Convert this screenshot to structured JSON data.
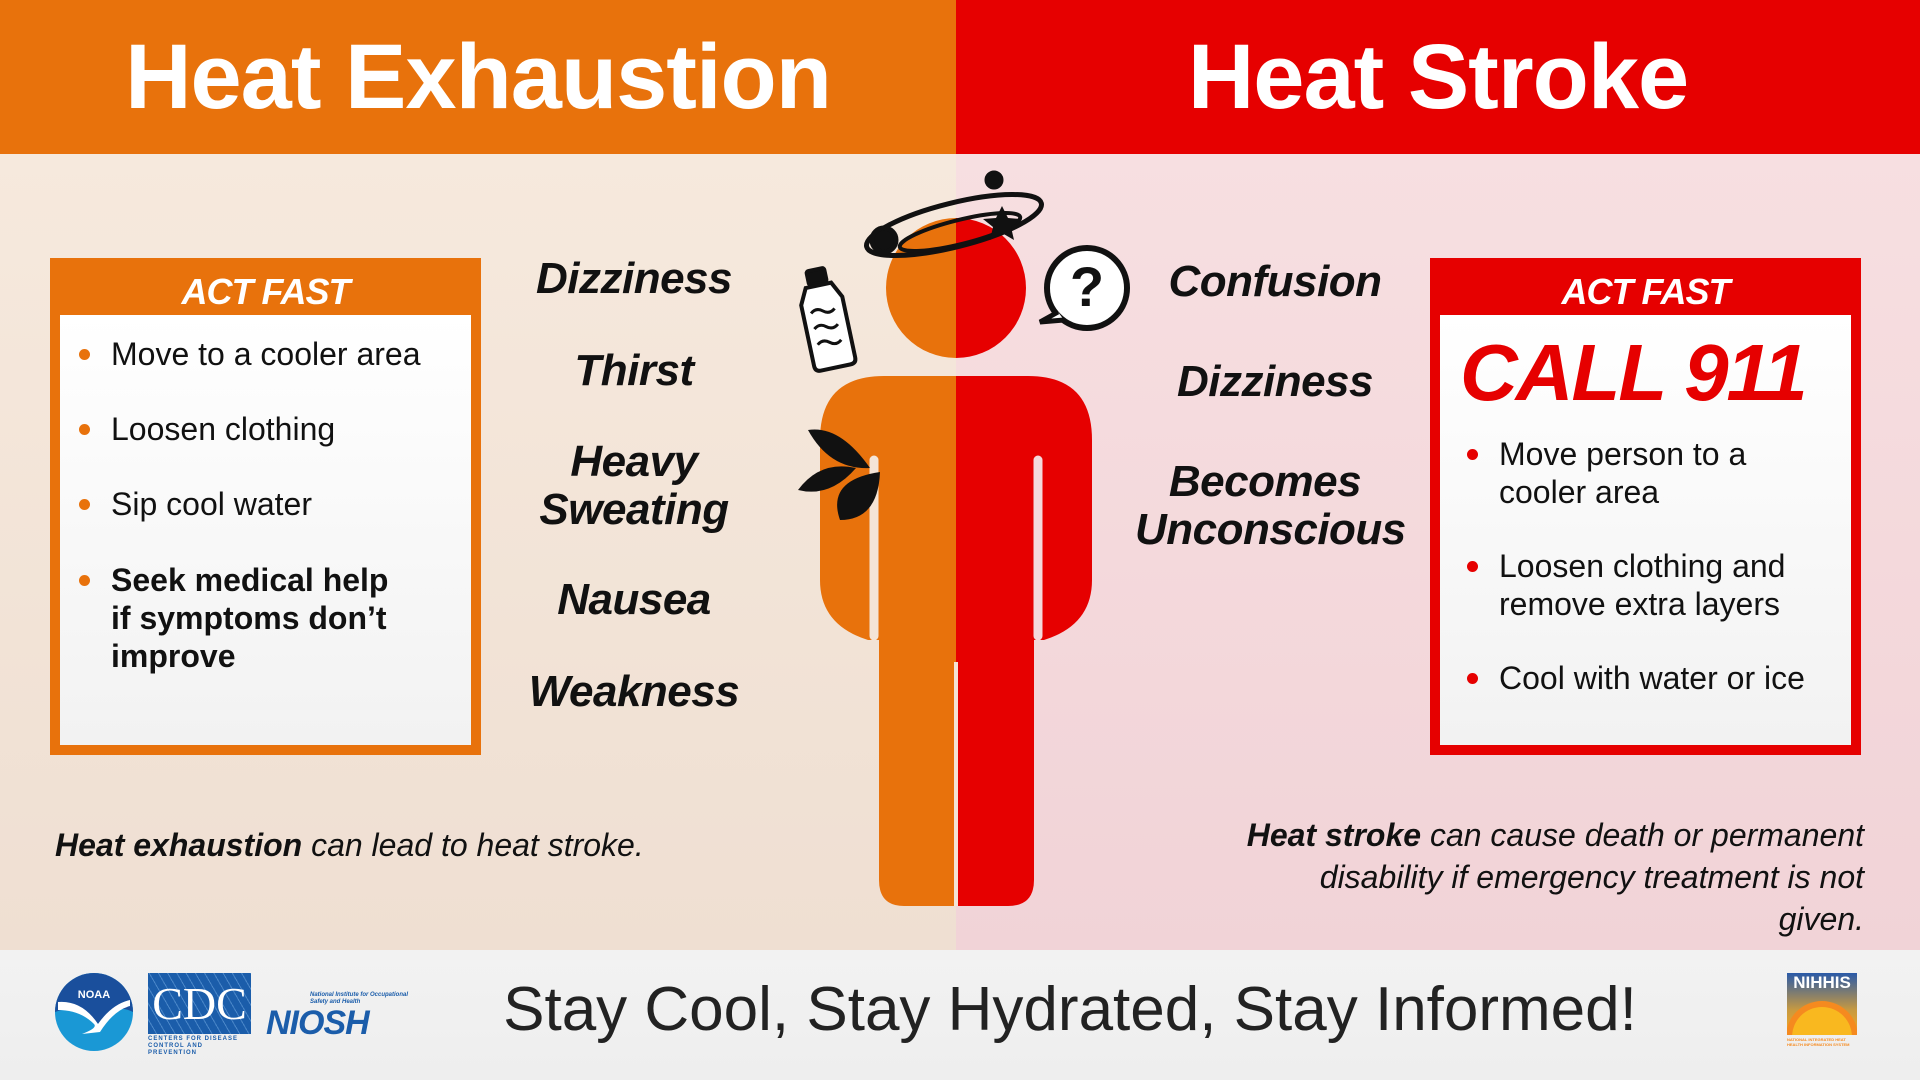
{
  "header": {
    "left_title": "Heat Exhaustion",
    "right_title": "Heat Stroke"
  },
  "colors": {
    "exhaustion": "#e8720c",
    "stroke": "#e60000",
    "footer_bg": "#f0f0f0"
  },
  "exhaustion": {
    "act_fast_label": "ACT FAST",
    "actions": [
      "Move to a cooler area",
      "Loosen clothing",
      "Sip cool water",
      "Seek medical help if symptoms don’t improve"
    ],
    "symptoms": [
      "Dizziness",
      "Thirst",
      "Heavy Sweating",
      "Nausea",
      "Weakness"
    ],
    "note_bold": "Heat exhaustion",
    "note_rest": " can lead to heat stroke."
  },
  "stroke": {
    "act_fast_label": "ACT FAST",
    "call": "CALL 911",
    "actions": [
      "Move person to a cooler area",
      "Loosen clothing and remove extra layers",
      "Cool with water or ice"
    ],
    "symptoms": [
      "Confusion",
      "Dizziness",
      "Becomes Unconscious"
    ],
    "note_bold": "Heat stroke",
    "note_rest": " can cause death or permanent disability if emergency treatment is not given."
  },
  "icons": [
    "water-bottle-icon",
    "dizzy-orbit-icon",
    "question-bubble-icon",
    "sweat-drops-icon",
    "human-figure-icon"
  ],
  "footer": {
    "tagline": "Stay Cool, Stay Hydrated, Stay Informed!",
    "logos": {
      "noaa": "NOAA",
      "cdc": "CDC",
      "cdc_sub": "CENTERS FOR DISEASE CONTROL AND PREVENTION",
      "niosh": "NIOSH",
      "niosh_sub": "National Institute for Occupational Safety and Health",
      "nihhis": "NIHHIS",
      "nihhis_sub": "NATIONAL INTEGRATED HEAT HEALTH INFORMATION SYSTEM"
    }
  }
}
